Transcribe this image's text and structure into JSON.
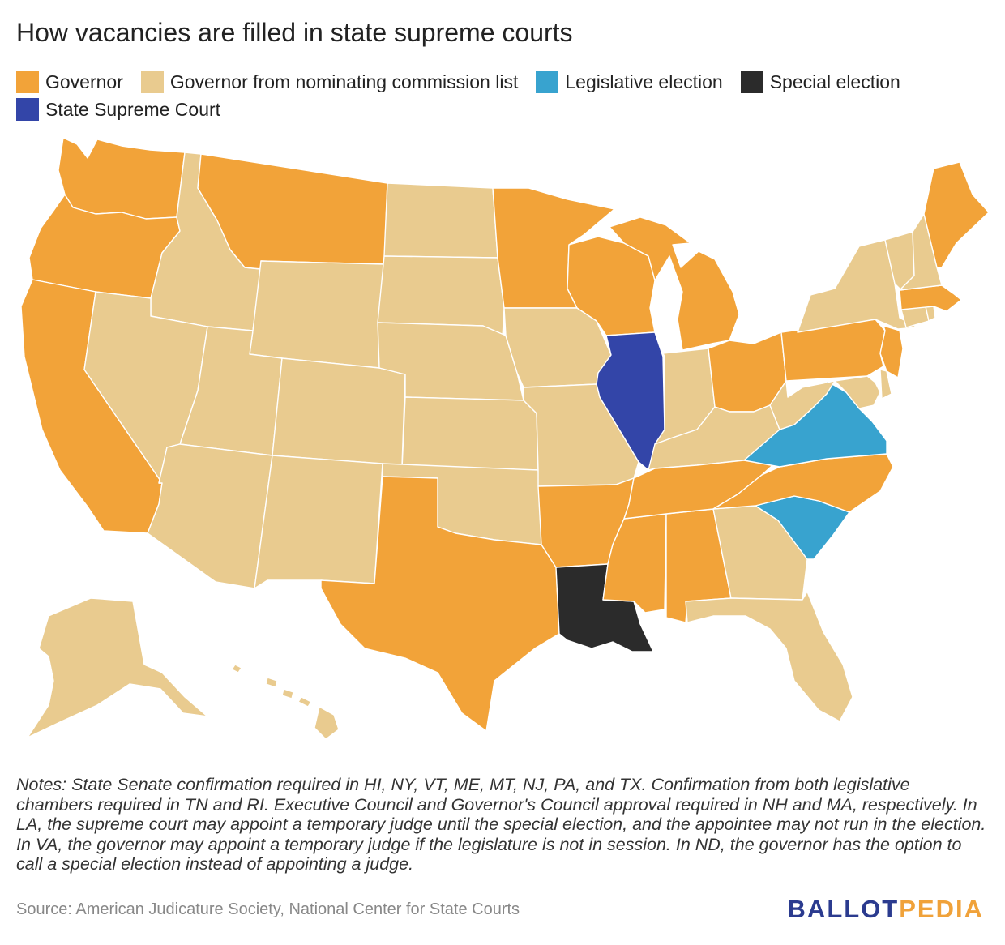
{
  "title": "How vacancies are filled in state supreme courts",
  "legend": [
    {
      "label": "Governor",
      "color": "#f2a339"
    },
    {
      "label": "Governor from nominating commission list",
      "color": "#e9cb8f"
    },
    {
      "label": "Legislative election",
      "color": "#38a3cf"
    },
    {
      "label": "Special election",
      "color": "#2b2b2b"
    },
    {
      "label": "State Supreme Court",
      "color": "#3345a8"
    }
  ],
  "map_data": {
    "categories": {
      "Governor": [
        "WA",
        "OR",
        "CA",
        "MT",
        "MN",
        "WI",
        "MI",
        "OH",
        "PA",
        "NJ",
        "ME",
        "MA",
        "TX",
        "AR",
        "MS",
        "AL",
        "TN",
        "NC"
      ],
      "Governor from nominating commission list": [
        "AK",
        "HI",
        "ID",
        "NV",
        "UT",
        "AZ",
        "WY",
        "CO",
        "NM",
        "ND",
        "SD",
        "NE",
        "KS",
        "OK",
        "IA",
        "MO",
        "IN",
        "KY",
        "WV",
        "GA",
        "FL",
        "NY",
        "VT",
        "NH",
        "CT",
        "RI",
        "DE",
        "MD"
      ],
      "Legislative election": [
        "VA",
        "SC"
      ],
      "Special election": [
        "LA"
      ],
      "State Supreme Court": [
        "IL"
      ]
    }
  },
  "notes": "Notes: State Senate confirmation required in HI, NY, VT, ME, MT, NJ, PA, and TX. Confirmation from both legislative chambers required in TN and RI. Executive Council and Governor's Council approval required in NH and MA, respectively. In LA, the supreme court may appoint a temporary judge until the special election, and the appointee may not run in the election. In VA, the governor may appoint a temporary judge if the legislature is not in session. In ND, the governor has the option to call a special election instead of appointing a judge.",
  "source": "Source: American Judicature Society, National Center for State Courts",
  "logo": {
    "part1": "BALLOT",
    "part2": "PEDIA"
  }
}
